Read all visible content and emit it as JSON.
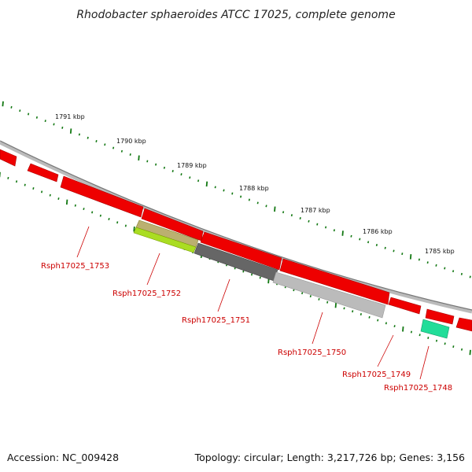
{
  "title": "Rhodobacter sphaeroides ATCC 17025, complete genome",
  "footer": {
    "accession": "Accession: NC_009428",
    "topology": "Topology: circular; Length: 3,217,726 bp; Genes: 3,156"
  },
  "scale_labels": [
    "1791 kbp",
    "1790 kbp",
    "1789 kbp",
    "1788 kbp",
    "1787 kbp",
    "1786 kbp",
    "1785 kbp"
  ],
  "gene_labels": [
    "Rsph17025_1753",
    "Rsph17025_1752",
    "Rsph17025_1751",
    "Rsph17025_1750",
    "Rsph17025_1749",
    "Rsph17025_1748"
  ],
  "colors": {
    "cds": "#ee0000",
    "gene_1752": "#aadd22",
    "gene_1751": "#666666",
    "gene_1750": "#bbbbbb",
    "gene_1748": "#22dd99",
    "backbone": "#888888",
    "ticks": "#117711",
    "label": "#cc0000"
  }
}
